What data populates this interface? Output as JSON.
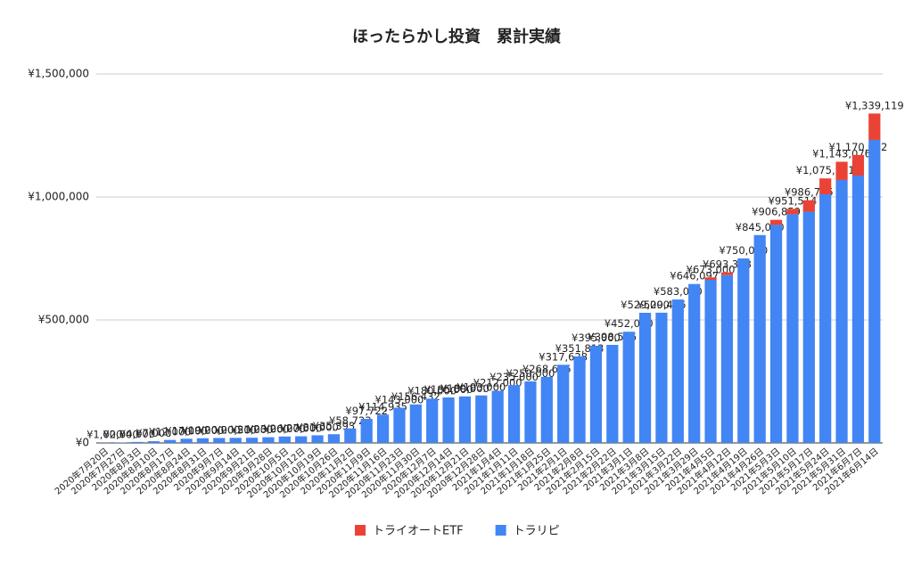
{
  "chart_data": {
    "type": "stacked_bar",
    "title": "ほったらかし投資　累計実績",
    "categories": [
      "2020年7月20日",
      "2020年7月27日",
      "2020年8月3日",
      "2020年8月10日",
      "2020年8月17日",
      "2020年8月24日",
      "2020年8月31日",
      "2020年9月7日",
      "2020年9月14日",
      "2020年9月21日",
      "2020年9月28日",
      "2020年10月5日",
      "2020年10月12日",
      "2020年10月19日",
      "2020年10月26日",
      "2020年11月2日",
      "2020年11月9日",
      "2020年11月16日",
      "2020年11月23日",
      "2020年11月30日",
      "2020年12月7日",
      "2020年12月14日",
      "2020年12月21日",
      "2020年12月28日",
      "2021年1月4日",
      "2021年1月11日",
      "2021年1月18日",
      "2021年1月25日",
      "2021年2月1日",
      "2021年2月8日",
      "2021年2月15日",
      "2021年2月22日",
      "2021年3月1日",
      "2021年3月8日",
      "2021年3月15日",
      "2021年3月22日",
      "2021年3月29日",
      "2021年4月5日",
      "2021年4月12日",
      "2021年4月19日",
      "2021年4月26日",
      "2021年5月3日",
      "2021年5月10日",
      "2021年5月17日",
      "2021年5月24日",
      "2021年5月31日",
      "2021年6月7日",
      "2021年6月14日"
    ],
    "series": [
      {
        "name": "トラリピ",
        "color": "#4285f4",
        "values": [
          1000,
          2000,
          4000,
          7000,
          12000,
          17000,
          19000,
          20000,
          20500,
          21000,
          23000,
          26000,
          27000,
          31000,
          35393,
          58723,
          97722,
          114935,
          143000,
          156432,
          180000,
          185000,
          189000,
          193000,
          212000,
          235000,
          250000,
          268695,
          317628,
          351813,
          395000,
          398555,
          452000,
          529000,
          529416,
          583000,
          646097,
          663000,
          682000,
          750000,
          845000,
          887000,
          930000,
          940000,
          1011000,
          1069000,
          1087000,
          1232000
        ]
      },
      {
        "name": "トライオートETF",
        "color": "#ea4335",
        "values": [
          0,
          0,
          0,
          0,
          0,
          0,
          0,
          0,
          0,
          0,
          0,
          0,
          0,
          0,
          0,
          0,
          0,
          0,
          0,
          0,
          0,
          0,
          0,
          0,
          0,
          0,
          0,
          0,
          0,
          0,
          0,
          0,
          0,
          0,
          0,
          0,
          0,
          10000,
          11388,
          0,
          0,
          19859,
          21514,
          46735,
          64381,
          74076,
          83682,
          107119
        ]
      }
    ],
    "total_labels": [
      "¥1,000",
      "¥2,000",
      "¥4,000",
      "¥7,000",
      "¥12,000",
      "¥17,000",
      "¥19,000",
      "¥20,000",
      "¥20,500",
      "¥21,000",
      "¥23,000",
      "¥26,000",
      "¥27,000",
      "¥31,000",
      "¥35,393",
      "¥58,723",
      "¥97,722",
      "¥114,935",
      "¥143,000",
      "¥156,432",
      "¥180,000",
      "¥185,000",
      "¥189,000",
      "¥193,000",
      "¥212,000",
      "¥235,000",
      "¥250,000",
      "¥268,695",
      "¥317,628",
      "¥351,813",
      "¥395,000",
      "¥398,555",
      "¥452,000",
      "¥529,000",
      "¥529,416",
      "¥583,000",
      "¥646,097",
      "¥673,000",
      "¥693,388",
      "¥750,000",
      "¥845,000",
      "¥906,859",
      "¥951,514",
      "¥986,735",
      "¥1,075,381",
      "¥1,143,076",
      "¥1,170,682",
      "¥1,339,119"
    ],
    "ylim": [
      0,
      1500000
    ],
    "yticks": [
      {
        "value": 0,
        "label": "¥0"
      },
      {
        "value": 500000,
        "label": "¥500,000"
      },
      {
        "value": 1000000,
        "label": "¥1,000,000"
      },
      {
        "value": 1500000,
        "label": "¥1,500,000"
      }
    ],
    "grid": true,
    "legend": "bottom"
  }
}
